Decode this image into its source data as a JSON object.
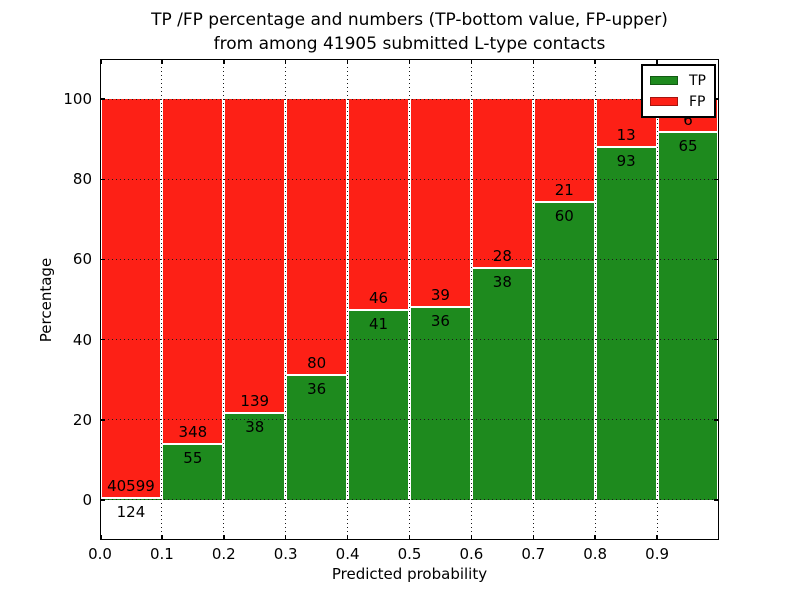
{
  "chart_data": {
    "type": "bar",
    "subtype": "stacked_percent_histogram",
    "title_lines": [
      "TP /FP percentage and numbers (TP-bottom value, FP-upper)",
      "from among 41905 submitted L-type contacts"
    ],
    "title": "TP /FP percentage and numbers (TP-bottom value, FP-upper) from among 41905 submitted L-type contacts",
    "total_contacts": 41905,
    "xlabel": "Predicted probability",
    "ylabel": "Percentage",
    "bin_edges": [
      0.0,
      0.1,
      0.2,
      0.3,
      0.4,
      0.5,
      0.6,
      0.7,
      0.8,
      0.9,
      1.0
    ],
    "x_tick_labels": [
      "0.0",
      "0.1",
      "0.2",
      "0.3",
      "0.4",
      "0.5",
      "0.6",
      "0.7",
      "0.8",
      "0.9"
    ],
    "y_ticks": [
      0,
      20,
      40,
      60,
      80,
      100
    ],
    "ylim": [
      -10,
      110
    ],
    "xlim": [
      0.0,
      1.0
    ],
    "grid": {
      "style": "dotted",
      "color": "#000000",
      "drawn_above_bars": true
    },
    "legend": {
      "position": "upper-right",
      "entries": [
        "TP",
        "FP"
      ]
    },
    "series": [
      {
        "name": "TP",
        "color": "#1e8a1e",
        "counts": [
          124,
          55,
          38,
          36,
          41,
          36,
          38,
          60,
          93,
          65
        ]
      },
      {
        "name": "FP",
        "color": "#fd2016",
        "counts": [
          40599,
          348,
          139,
          80,
          46,
          39,
          28,
          21,
          13,
          6
        ]
      }
    ],
    "tp_percent_by_bin": [
      0.3,
      13.65,
      21.47,
      31.03,
      47.13,
      48.0,
      57.58,
      74.07,
      87.74,
      91.55
    ],
    "bar_edge_color": "#ffffff"
  }
}
